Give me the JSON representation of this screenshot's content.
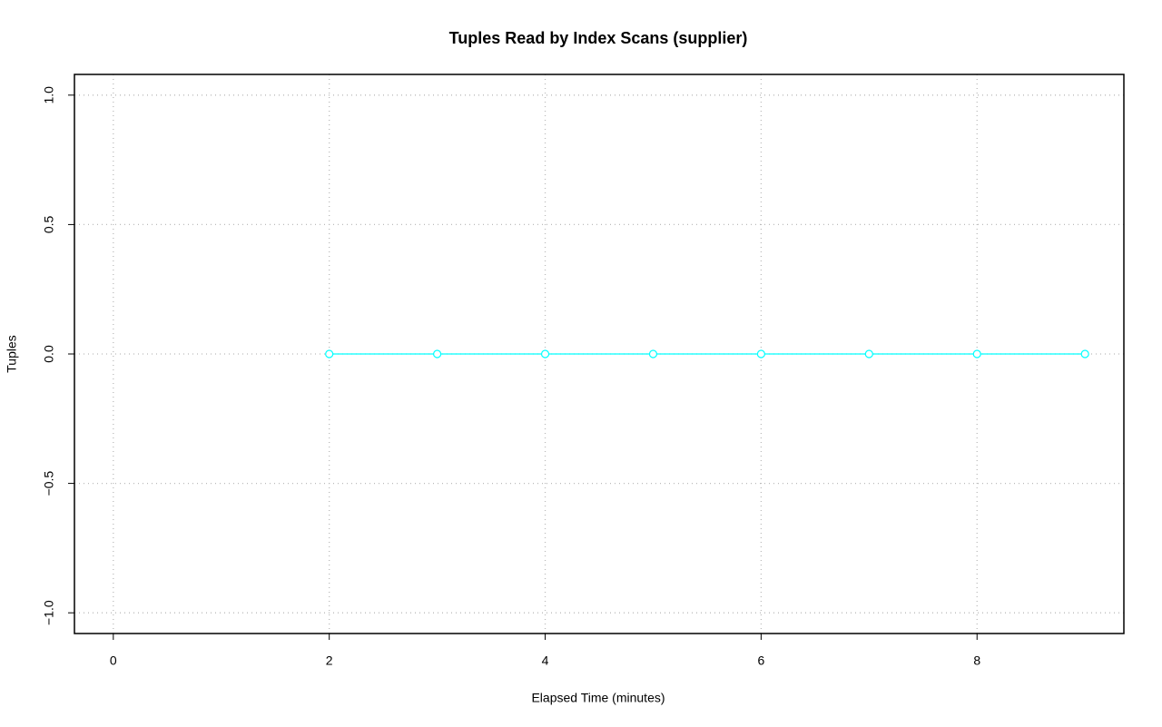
{
  "chart_data": {
    "type": "line",
    "title": "Tuples Read by Index Scans (supplier)",
    "x_label": "Elapsed Time (minutes)",
    "y_label": "Tuples",
    "x": [
      2,
      3,
      4,
      5,
      6,
      7,
      8,
      9
    ],
    "series": [
      {
        "color": "#00ffff",
        "values": [
          0,
          0,
          0,
          0,
          0,
          0,
          0,
          0
        ]
      }
    ],
    "xlim": [
      -0.36,
      9.36
    ],
    "ylim": [
      -1.08,
      1.08
    ],
    "xticks": [
      0,
      2,
      4,
      6,
      8
    ],
    "yticks": [
      {
        "value": -1,
        "label": "−1.0"
      },
      {
        "value": -0.5,
        "label": "−0.5"
      },
      {
        "value": 0,
        "label": "0.0"
      },
      {
        "value": 0.5,
        "label": "0.5"
      },
      {
        "value": 1,
        "label": "1.0"
      }
    ],
    "grid": true
  }
}
